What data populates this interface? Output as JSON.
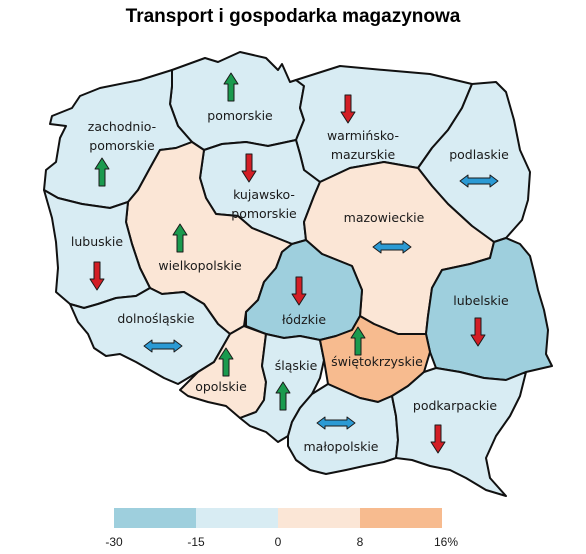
{
  "title": "Transport i gospodarka magazynowa",
  "colors": {
    "class_1": "#9ecfdd",
    "class_2": "#d8ecf3",
    "class_3": "#fbe6d6",
    "class_4": "#f7bb8f",
    "arrow_up": "#1a9a4e",
    "arrow_down": "#d31e25",
    "arrow_flat": "#2b9ad4"
  },
  "regions": [
    {
      "name": "pomorskie",
      "label": [
        "pomorskie"
      ],
      "color_class": "class_2",
      "trend": "up"
    },
    {
      "name": "zachodniopomorskie",
      "label": [
        "zachodnio-",
        "pomorskie"
      ],
      "color_class": "class_2",
      "trend": "up"
    },
    {
      "name": "warmińsko-mazurskie",
      "label": [
        "warmińsko-",
        "mazurskie"
      ],
      "color_class": "class_2",
      "trend": "down"
    },
    {
      "name": "podlaskie",
      "label": [
        "podlaskie"
      ],
      "color_class": "class_2",
      "trend": "flat"
    },
    {
      "name": "kujawsko-pomorskie",
      "label": [
        "kujawsko-",
        "pomorskie"
      ],
      "color_class": "class_2",
      "trend": "down"
    },
    {
      "name": "mazowieckie",
      "label": [
        "mazowieckie"
      ],
      "color_class": "class_3",
      "trend": "flat"
    },
    {
      "name": "wielkopolskie",
      "label": [
        "wielkopolskie"
      ],
      "color_class": "class_3",
      "trend": "up"
    },
    {
      "name": "lubuskie",
      "label": [
        "lubuskie"
      ],
      "color_class": "class_2",
      "trend": "down"
    },
    {
      "name": "łódzkie",
      "label": [
        "łódzkie"
      ],
      "color_class": "class_1",
      "trend": "down"
    },
    {
      "name": "lubelskie",
      "label": [
        "lubelskie"
      ],
      "color_class": "class_1",
      "trend": "down"
    },
    {
      "name": "dolnośląskie",
      "label": [
        "dolnośląskie"
      ],
      "color_class": "class_2",
      "trend": "flat"
    },
    {
      "name": "opolskie",
      "label": [
        "opolskie"
      ],
      "color_class": "class_3",
      "trend": "up"
    },
    {
      "name": "śląskie",
      "label": [
        "śląskie"
      ],
      "color_class": "class_2",
      "trend": "up"
    },
    {
      "name": "świętokrzyskie",
      "label": [
        "świętokrzyskie"
      ],
      "color_class": "class_4",
      "trend": "up"
    },
    {
      "name": "małopolskie",
      "label": [
        "małopolskie"
      ],
      "color_class": "class_2",
      "trend": "flat"
    },
    {
      "name": "podkarpackie",
      "label": [
        "podkarpackie"
      ],
      "color_class": "class_2",
      "trend": "down"
    }
  ],
  "legend": {
    "bins": [
      {
        "from": -30,
        "to": -15,
        "color_class": "class_1"
      },
      {
        "from": -15,
        "to": 0,
        "color_class": "class_2"
      },
      {
        "from": 0,
        "to": 8,
        "color_class": "class_3"
      },
      {
        "from": 8,
        "to": 16,
        "color_class": "class_4"
      }
    ],
    "ticks": [
      "-30",
      "-15",
      "0",
      "8",
      "16%"
    ]
  }
}
